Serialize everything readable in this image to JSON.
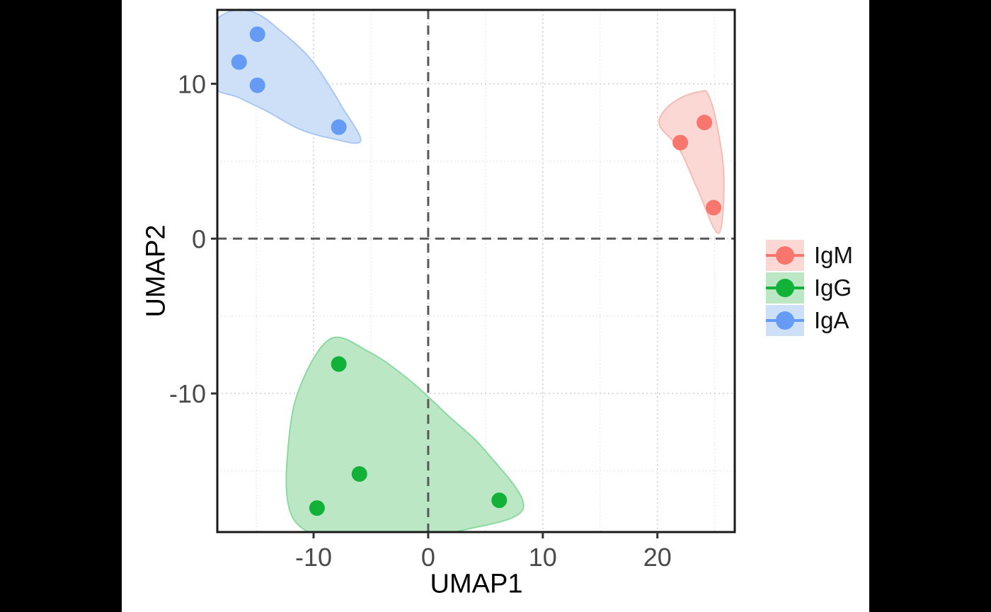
{
  "figure": {
    "background": "#000000",
    "plot_background": "#ffffff"
  },
  "chart_data": {
    "type": "scatter",
    "title": "",
    "xlabel": "UMAP1",
    "ylabel": "UMAP2",
    "x_domain": [
      -18.4,
      26.75
    ],
    "y_domain": [
      -18.95,
      14.77
    ],
    "x_ticks": [
      "-10",
      "0",
      "10",
      "20"
    ],
    "x_tick_values": [
      -10,
      0,
      10,
      20
    ],
    "y_ticks": [
      "-10",
      "0",
      "10"
    ],
    "y_tick_values": [
      -10,
      0,
      10
    ],
    "x_minor_tick_values": [
      -15,
      -5,
      5,
      15,
      25
    ],
    "y_minor_tick_values": [
      -15,
      -5,
      5
    ],
    "grid": "dotted",
    "reference_lines": [
      {
        "axis": "x",
        "value": 0,
        "style": "dashed",
        "color": "#595959"
      },
      {
        "axis": "y",
        "value": 0,
        "style": "dashed",
        "color": "#595959"
      }
    ],
    "legend_position": "right",
    "series": [
      {
        "name": "IgM",
        "point_color": "#F8766D",
        "hull_fill": "#FBD8D4",
        "hull_stroke": "#F5BCB6",
        "points": [
          [
            24.1,
            7.5
          ],
          [
            22.0,
            6.2
          ],
          [
            24.9,
            2.0
          ]
        ],
        "hull": [
          [
            23.8,
            9.5
          ],
          [
            24.4,
            9.35
          ],
          [
            25.15,
            7.5
          ],
          [
            25.8,
            4.0
          ],
          [
            25.35,
            0.35
          ],
          [
            23.5,
            3.2
          ],
          [
            21.9,
            5.8
          ],
          [
            20.2,
            7.3
          ],
          [
            20.7,
            8.35
          ],
          [
            22.2,
            9.15
          ]
        ]
      },
      {
        "name": "IgG",
        "point_color": "#12B239",
        "hull_fill": "#BCE7C5",
        "hull_stroke": "#8CD9A0",
        "points": [
          [
            -7.8,
            -8.1
          ],
          [
            -6.0,
            -15.2
          ],
          [
            -9.7,
            -17.4
          ],
          [
            6.2,
            -16.9
          ]
        ],
        "hull": [
          [
            -8.6,
            -6.5
          ],
          [
            -11.4,
            -10.0
          ],
          [
            -12.3,
            -14.2
          ],
          [
            -12.2,
            -17.2
          ],
          [
            -11.0,
            -18.7
          ],
          [
            -8.3,
            -19.3
          ],
          [
            -2.3,
            -19.4
          ],
          [
            3.2,
            -18.8
          ],
          [
            8.3,
            -17.4
          ],
          [
            5.1,
            -13.8
          ],
          [
            1.7,
            -11.4
          ],
          [
            -1.7,
            -9.1
          ],
          [
            -5.2,
            -7.3
          ]
        ]
      },
      {
        "name": "IgA",
        "point_color": "#659BF5",
        "hull_fill": "#CEE0F8",
        "hull_stroke": "#A9C7F2",
        "points": [
          [
            -14.9,
            13.2
          ],
          [
            -16.5,
            11.4
          ],
          [
            -14.9,
            9.9
          ],
          [
            -7.8,
            7.2
          ]
        ],
        "hull": [
          [
            -17.2,
            14.7
          ],
          [
            -15.0,
            14.55
          ],
          [
            -12.7,
            13.3
          ],
          [
            -10.5,
            11.8
          ],
          [
            -9.0,
            10.3
          ],
          [
            -7.6,
            8.6
          ],
          [
            -5.9,
            6.3
          ],
          [
            -8.6,
            6.5
          ],
          [
            -11.3,
            7.1
          ],
          [
            -14.0,
            8.2
          ],
          [
            -16.5,
            9.1
          ],
          [
            -18.9,
            10.0
          ],
          [
            -18.9,
            13.5
          ]
        ]
      }
    ]
  }
}
